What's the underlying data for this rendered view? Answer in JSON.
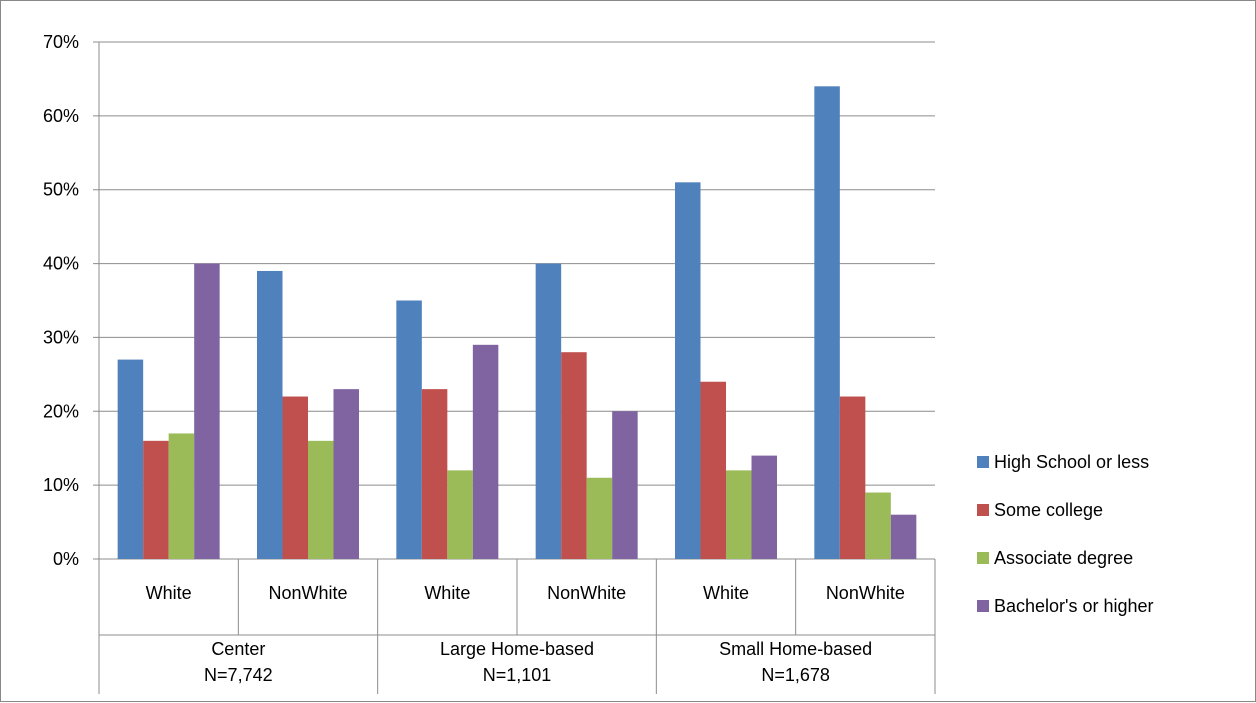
{
  "chart_data": {
    "type": "bar",
    "title": "",
    "xlabel": "",
    "ylabel": "",
    "ylim": [
      0,
      70
    ],
    "y_tick_step": 10,
    "y_tick_format": "percent",
    "grid": true,
    "legend_position": "right",
    "categories": [
      "White",
      "NonWhite",
      "White",
      "NonWhite",
      "White",
      "NonWhite"
    ],
    "groups": [
      {
        "label_line1": "Center",
        "label_line2": "N=7,742",
        "span": 2
      },
      {
        "label_line1": "Large Home-based",
        "label_line2": "N=1,101",
        "span": 2
      },
      {
        "label_line1": "Small Home-based",
        "label_line2": "N=1,678",
        "span": 2
      }
    ],
    "series": [
      {
        "name": "High School or less",
        "color": "#4F81BD",
        "values": [
          27,
          39,
          35,
          40,
          51,
          64
        ]
      },
      {
        "name": "Some college",
        "color": "#C0504D",
        "values": [
          16,
          22,
          23,
          28,
          24,
          22
        ]
      },
      {
        "name": "Associate degree",
        "color": "#9BBB59",
        "values": [
          17,
          16,
          12,
          11,
          12,
          9
        ]
      },
      {
        "name": "Bachelor's or higher",
        "color": "#8064A2",
        "values": [
          40,
          23,
          29,
          20,
          14,
          6
        ]
      }
    ]
  }
}
